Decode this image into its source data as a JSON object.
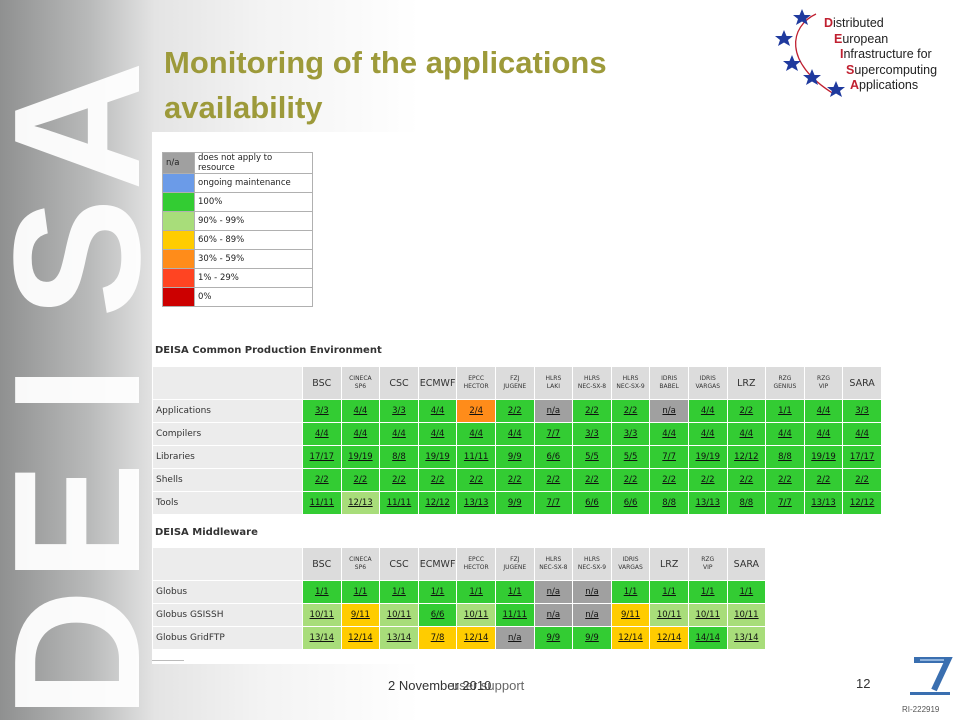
{
  "sidebar_word": [
    "D",
    "E",
    "I",
    "S",
    "A"
  ],
  "title": "Monitoring of the applications availability",
  "logo": {
    "lines": [
      {
        "initial": "D",
        "rest": "istributed"
      },
      {
        "initial": "E",
        "rest": "uropean"
      },
      {
        "initial": "I",
        "rest": "nfrastructure for"
      },
      {
        "initial": "S",
        "rest": "upercomputing"
      },
      {
        "initial": "A",
        "rest": "pplications"
      }
    ],
    "star_color": "#1f3a9e"
  },
  "legend": [
    {
      "color": "#a0a0a0",
      "label": "does not apply to resource",
      "swatch_text": "n/a"
    },
    {
      "color": "#6b9be8",
      "label": "ongoing maintenance",
      "swatch_text": ""
    },
    {
      "color": "#33cc33",
      "label": "100%",
      "swatch_text": ""
    },
    {
      "color": "#a8dd7a",
      "label": "90% - 99%",
      "swatch_text": ""
    },
    {
      "color": "#ffcc00",
      "label": "60% - 89%",
      "swatch_text": ""
    },
    {
      "color": "#ff8c1a",
      "label": "30% - 59%",
      "swatch_text": ""
    },
    {
      "color": "#ff4422",
      "label": "1% - 29%",
      "swatch_text": ""
    },
    {
      "color": "#cc0000",
      "label": "0%",
      "swatch_text": ""
    }
  ],
  "status_colors": {
    "g": "#33cc33",
    "lg": "#a8dd7a",
    "y": "#ffcc00",
    "o": "#ff8c1a",
    "n": "#a0a0a0"
  },
  "cpe": {
    "title": "DEISA Common Production Environment",
    "columns": [
      {
        "l1": "BSC",
        "l2": "",
        "small": false
      },
      {
        "l1": "CINECA",
        "l2": "SP6",
        "small": true
      },
      {
        "l1": "CSC",
        "l2": "",
        "small": false
      },
      {
        "l1": "ECMWF",
        "l2": "",
        "small": false
      },
      {
        "l1": "EPCC",
        "l2": "HECTOR",
        "small": true
      },
      {
        "l1": "FZJ",
        "l2": "JUGENE",
        "small": true
      },
      {
        "l1": "HLRS",
        "l2": "LAKI",
        "small": true
      },
      {
        "l1": "HLRS",
        "l2": "NEC-SX-8",
        "small": true
      },
      {
        "l1": "HLRS",
        "l2": "NEC-SX-9",
        "small": true
      },
      {
        "l1": "IDRIS",
        "l2": "BABEL",
        "small": true
      },
      {
        "l1": "IDRIS",
        "l2": "VARGAS",
        "small": true
      },
      {
        "l1": "LRZ",
        "l2": "",
        "small": false
      },
      {
        "l1": "RZG",
        "l2": "GENIUS",
        "small": true
      },
      {
        "l1": "RZG",
        "l2": "VIP",
        "small": true
      },
      {
        "l1": "SARA",
        "l2": "",
        "small": false
      }
    ],
    "rows": [
      {
        "label": "Applications",
        "cells": [
          [
            "3/3",
            "g"
          ],
          [
            "4/4",
            "g"
          ],
          [
            "3/3",
            "g"
          ],
          [
            "4/4",
            "g"
          ],
          [
            "2/4",
            "o"
          ],
          [
            "2/2",
            "g"
          ],
          [
            "n/a",
            "n"
          ],
          [
            "2/2",
            "g"
          ],
          [
            "2/2",
            "g"
          ],
          [
            "n/a",
            "n"
          ],
          [
            "4/4",
            "g"
          ],
          [
            "2/2",
            "g"
          ],
          [
            "1/1",
            "g"
          ],
          [
            "4/4",
            "g"
          ],
          [
            "3/3",
            "g"
          ]
        ]
      },
      {
        "label": "Compilers",
        "cells": [
          [
            "4/4",
            "g"
          ],
          [
            "4/4",
            "g"
          ],
          [
            "4/4",
            "g"
          ],
          [
            "4/4",
            "g"
          ],
          [
            "4/4",
            "g"
          ],
          [
            "4/4",
            "g"
          ],
          [
            "7/7",
            "g"
          ],
          [
            "3/3",
            "g"
          ],
          [
            "3/3",
            "g"
          ],
          [
            "4/4",
            "g"
          ],
          [
            "4/4",
            "g"
          ],
          [
            "4/4",
            "g"
          ],
          [
            "4/4",
            "g"
          ],
          [
            "4/4",
            "g"
          ],
          [
            "4/4",
            "g"
          ]
        ]
      },
      {
        "label": "Libraries",
        "cells": [
          [
            "17/17",
            "g"
          ],
          [
            "19/19",
            "g"
          ],
          [
            "8/8",
            "g"
          ],
          [
            "19/19",
            "g"
          ],
          [
            "11/11",
            "g"
          ],
          [
            "9/9",
            "g"
          ],
          [
            "6/6",
            "g"
          ],
          [
            "5/5",
            "g"
          ],
          [
            "5/5",
            "g"
          ],
          [
            "7/7",
            "g"
          ],
          [
            "19/19",
            "g"
          ],
          [
            "12/12",
            "g"
          ],
          [
            "8/8",
            "g"
          ],
          [
            "19/19",
            "g"
          ],
          [
            "17/17",
            "g"
          ]
        ]
      },
      {
        "label": "Shells",
        "cells": [
          [
            "2/2",
            "g"
          ],
          [
            "2/2",
            "g"
          ],
          [
            "2/2",
            "g"
          ],
          [
            "2/2",
            "g"
          ],
          [
            "2/2",
            "g"
          ],
          [
            "2/2",
            "g"
          ],
          [
            "2/2",
            "g"
          ],
          [
            "2/2",
            "g"
          ],
          [
            "2/2",
            "g"
          ],
          [
            "2/2",
            "g"
          ],
          [
            "2/2",
            "g"
          ],
          [
            "2/2",
            "g"
          ],
          [
            "2/2",
            "g"
          ],
          [
            "2/2",
            "g"
          ],
          [
            "2/2",
            "g"
          ]
        ]
      },
      {
        "label": "Tools",
        "cells": [
          [
            "11/11",
            "g"
          ],
          [
            "12/13",
            "lg"
          ],
          [
            "11/11",
            "g"
          ],
          [
            "12/12",
            "g"
          ],
          [
            "13/13",
            "g"
          ],
          [
            "9/9",
            "g"
          ],
          [
            "7/7",
            "g"
          ],
          [
            "6/6",
            "g"
          ],
          [
            "6/6",
            "g"
          ],
          [
            "8/8",
            "g"
          ],
          [
            "13/13",
            "g"
          ],
          [
            "8/8",
            "g"
          ],
          [
            "7/7",
            "g"
          ],
          [
            "13/13",
            "g"
          ],
          [
            "12/12",
            "g"
          ]
        ]
      }
    ]
  },
  "mw": {
    "title": "DEISA Middleware",
    "columns": [
      {
        "l1": "BSC",
        "l2": "",
        "small": false
      },
      {
        "l1": "CINECA",
        "l2": "SP6",
        "small": true
      },
      {
        "l1": "CSC",
        "l2": "",
        "small": false
      },
      {
        "l1": "ECMWF",
        "l2": "",
        "small": false
      },
      {
        "l1": "EPCC",
        "l2": "HECTOR",
        "small": true
      },
      {
        "l1": "FZJ",
        "l2": "JUGENE",
        "small": true
      },
      {
        "l1": "HLRS",
        "l2": "NEC-SX-8",
        "small": true
      },
      {
        "l1": "HLRS",
        "l2": "NEC-SX-9",
        "small": true
      },
      {
        "l1": "IDRIS",
        "l2": "VARGAS",
        "small": true
      },
      {
        "l1": "LRZ",
        "l2": "",
        "small": false
      },
      {
        "l1": "RZG",
        "l2": "VIP",
        "small": true
      },
      {
        "l1": "SARA",
        "l2": "",
        "small": false
      }
    ],
    "rows": [
      {
        "label": "Globus",
        "cells": [
          [
            "1/1",
            "g"
          ],
          [
            "1/1",
            "g"
          ],
          [
            "1/1",
            "g"
          ],
          [
            "1/1",
            "g"
          ],
          [
            "1/1",
            "g"
          ],
          [
            "1/1",
            "g"
          ],
          [
            "n/a",
            "n"
          ],
          [
            "n/a",
            "n"
          ],
          [
            "1/1",
            "g"
          ],
          [
            "1/1",
            "g"
          ],
          [
            "1/1",
            "g"
          ],
          [
            "1/1",
            "g"
          ]
        ]
      },
      {
        "label": "Globus GSISSH",
        "cells": [
          [
            "10/11",
            "lg"
          ],
          [
            "9/11",
            "y"
          ],
          [
            "10/11",
            "lg"
          ],
          [
            "6/6",
            "g"
          ],
          [
            "10/11",
            "lg"
          ],
          [
            "11/11",
            "g"
          ],
          [
            "n/a",
            "n"
          ],
          [
            "n/a",
            "n"
          ],
          [
            "9/11",
            "y"
          ],
          [
            "10/11",
            "lg"
          ],
          [
            "10/11",
            "lg"
          ],
          [
            "10/11",
            "lg"
          ]
        ]
      },
      {
        "label": "Globus GridFTP",
        "cells": [
          [
            "13/14",
            "lg"
          ],
          [
            "12/14",
            "y"
          ],
          [
            "13/14",
            "lg"
          ],
          [
            "7/8",
            "y"
          ],
          [
            "12/14",
            "y"
          ],
          [
            "n/a",
            "n"
          ],
          [
            "9/9",
            "g"
          ],
          [
            "9/9",
            "g"
          ],
          [
            "12/14",
            "y"
          ],
          [
            "12/14",
            "y"
          ],
          [
            "14/14",
            "g"
          ],
          [
            "13/14",
            "lg"
          ]
        ]
      }
    ]
  },
  "footer": {
    "date": "2 November 2010",
    "overlap": "user support",
    "page": "12",
    "ri": "RI-222919"
  }
}
